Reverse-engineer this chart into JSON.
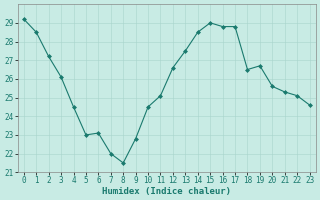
{
  "x": [
    0,
    1,
    2,
    3,
    4,
    5,
    6,
    7,
    8,
    9,
    10,
    11,
    12,
    13,
    14,
    15,
    16,
    17,
    18,
    19,
    20,
    21,
    22,
    23
  ],
  "y": [
    29.2,
    28.5,
    27.2,
    26.1,
    24.5,
    23.0,
    23.1,
    22.0,
    21.5,
    22.8,
    24.5,
    25.1,
    26.6,
    27.5,
    28.5,
    29.0,
    28.8,
    28.8,
    26.5,
    26.7,
    25.6,
    25.3,
    25.1,
    24.6
  ],
  "line_color": "#1a7a6e",
  "marker": "D",
  "marker_size": 2.0,
  "bg_color": "#c8ebe4",
  "grid_color": "#a8d4cc",
  "xlabel": "Humidex (Indice chaleur)",
  "ylim": [
    21,
    30
  ],
  "xlim": [
    -0.5,
    23.5
  ],
  "yticks": [
    21,
    22,
    23,
    24,
    25,
    26,
    27,
    28,
    29
  ],
  "xtick_labels": [
    "0",
    "1",
    "2",
    "3",
    "4",
    "5",
    "6",
    "7",
    "8",
    "9",
    "10",
    "11",
    "12",
    "13",
    "14",
    "15",
    "16",
    "17",
    "18",
    "19",
    "20",
    "21",
    "22",
    "23"
  ],
  "label_fontsize": 6.5,
  "tick_fontsize": 5.5
}
